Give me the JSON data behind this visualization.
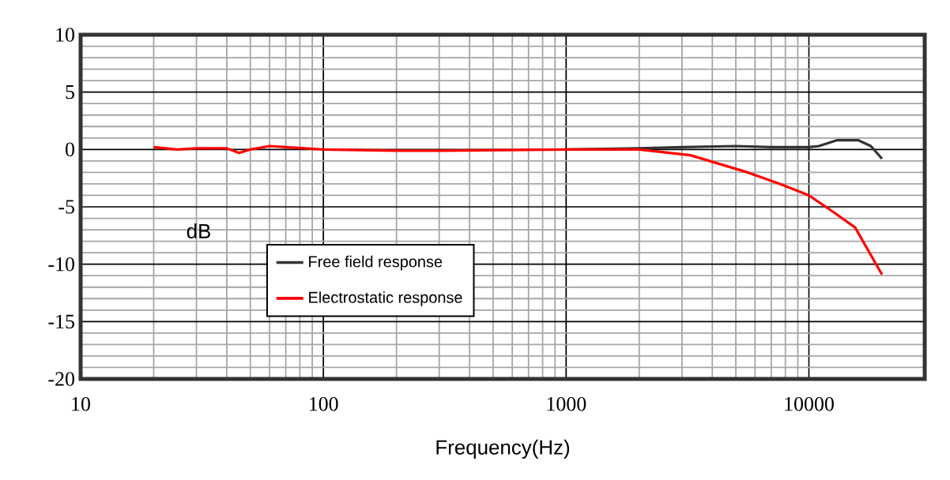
{
  "chart_data": {
    "type": "line",
    "xlabel": "Frequency(Hz)",
    "ylabel": "dB",
    "log": "x",
    "xlim": [
      10,
      30000
    ],
    "ylim": [
      -20,
      10
    ],
    "xticks": [
      10,
      100,
      1000,
      10000
    ],
    "yticks": [
      -20,
      -15,
      -10,
      -5,
      0,
      5,
      10
    ],
    "grid": true,
    "legend": "bottom left",
    "marker": "none",
    "line_style": "solid",
    "series": [
      {
        "name": "Free field response",
        "color": "#333333",
        "x": [
          1000,
          2000,
          3000,
          5000,
          7000,
          10000,
          11000,
          13000,
          16000,
          18000,
          20000
        ],
        "values": [
          0,
          0.1,
          0.2,
          0.3,
          0.2,
          0.2,
          0.3,
          0.8,
          0.8,
          0.3,
          -0.8
        ]
      },
      {
        "name": "Electrostatic response",
        "color": "#ff0000",
        "x": [
          20,
          25,
          30,
          40,
          45,
          50,
          60,
          70,
          100,
          200,
          300,
          1000,
          2000,
          3250,
          5600,
          7600,
          10000,
          12700,
          15500,
          20000
        ],
        "values": [
          0.2,
          0,
          0.1,
          0.1,
          -0.3,
          0,
          0.3,
          0.2,
          0,
          -0.1,
          -0.1,
          0,
          0,
          -0.5,
          -2.0,
          -3.0,
          -4.0,
          -5.5,
          -6.8,
          -10.9
        ]
      }
    ]
  }
}
